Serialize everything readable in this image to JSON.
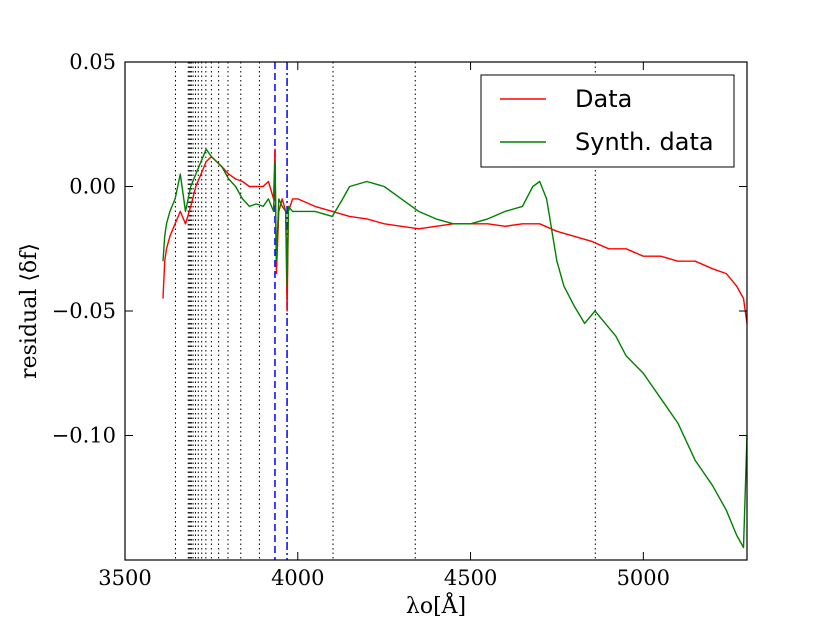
{
  "chart_data": {
    "type": "line",
    "title": "",
    "xlabel": "λo[Å]",
    "ylabel": "residual ⟨δf⟩",
    "xlim": [
      3500,
      5300
    ],
    "ylim": [
      -0.15,
      0.05
    ],
    "xticks": [
      3500,
      4000,
      4500,
      5000
    ],
    "xtick_labels": [
      "3500",
      "4000",
      "4500",
      "5000"
    ],
    "yticks": [
      0.05,
      0.0,
      -0.05,
      -0.1
    ],
    "ytick_labels": [
      "0.05",
      "0.00",
      "−0.05",
      "−0.10"
    ],
    "grid": false,
    "legend_position": "top-right",
    "series": [
      {
        "name": "Data",
        "color": "#ff0000",
        "x": [
          3610,
          3615,
          3620,
          3630,
          3645,
          3660,
          3675,
          3690,
          3705,
          3720,
          3735,
          3750,
          3765,
          3780,
          3800,
          3820,
          3840,
          3860,
          3880,
          3900,
          3915,
          3930,
          3934,
          3938,
          3945,
          3955,
          3965,
          3969,
          3973,
          3985,
          4000,
          4050,
          4100,
          4150,
          4200,
          4250,
          4300,
          4350,
          4400,
          4450,
          4500,
          4550,
          4600,
          4650,
          4700,
          4750,
          4800,
          4850,
          4900,
          4950,
          5000,
          5050,
          5100,
          5150,
          5200,
          5240,
          5270,
          5290,
          5300
        ],
        "y": [
          -0.045,
          -0.03,
          -0.025,
          -0.02,
          -0.015,
          -0.01,
          -0.015,
          -0.008,
          0.0,
          0.005,
          0.01,
          0.012,
          0.01,
          0.008,
          0.005,
          0.003,
          0.002,
          0.0,
          0.0,
          0.0,
          0.002,
          -0.005,
          0.015,
          -0.035,
          -0.01,
          -0.005,
          -0.01,
          -0.05,
          -0.01,
          -0.005,
          -0.005,
          -0.008,
          -0.01,
          -0.012,
          -0.013,
          -0.015,
          -0.016,
          -0.017,
          -0.016,
          -0.015,
          -0.015,
          -0.015,
          -0.016,
          -0.015,
          -0.015,
          -0.018,
          -0.02,
          -0.022,
          -0.025,
          -0.025,
          -0.028,
          -0.028,
          -0.03,
          -0.03,
          -0.033,
          -0.035,
          -0.04,
          -0.045,
          -0.055
        ]
      },
      {
        "name": "Synth. data",
        "color": "#008000",
        "x": [
          3610,
          3615,
          3620,
          3630,
          3645,
          3660,
          3675,
          3690,
          3705,
          3720,
          3735,
          3750,
          3765,
          3780,
          3800,
          3820,
          3840,
          3860,
          3880,
          3900,
          3915,
          3930,
          3934,
          3938,
          3945,
          3955,
          3965,
          3969,
          3973,
          3985,
          4000,
          4050,
          4100,
          4130,
          4150,
          4200,
          4250,
          4300,
          4350,
          4400,
          4450,
          4500,
          4550,
          4600,
          4650,
          4680,
          4700,
          4720,
          4750,
          4770,
          4800,
          4830,
          4860,
          4890,
          4920,
          4950,
          5000,
          5050,
          5100,
          5150,
          5200,
          5240,
          5270,
          5290,
          5300
        ],
        "y": [
          -0.03,
          -0.02,
          -0.015,
          -0.01,
          -0.005,
          0.005,
          -0.01,
          0.0,
          0.005,
          0.01,
          0.015,
          0.012,
          0.01,
          0.008,
          0.003,
          0.0,
          -0.005,
          -0.008,
          -0.007,
          -0.008,
          -0.005,
          -0.01,
          0.01,
          -0.03,
          -0.005,
          -0.008,
          -0.01,
          -0.04,
          -0.008,
          -0.01,
          -0.01,
          -0.01,
          -0.012,
          -0.005,
          0.0,
          0.002,
          0.0,
          -0.005,
          -0.01,
          -0.013,
          -0.015,
          -0.015,
          -0.013,
          -0.01,
          -0.008,
          0.0,
          0.002,
          -0.005,
          -0.03,
          -0.04,
          -0.048,
          -0.055,
          -0.05,
          -0.055,
          -0.06,
          -0.068,
          -0.075,
          -0.085,
          -0.095,
          -0.11,
          -0.12,
          -0.13,
          -0.14,
          -0.145,
          -0.1
        ]
      }
    ],
    "vertical_lines": [
      {
        "style": "dotted",
        "color": "#000000",
        "x": [
          3646,
          3683,
          3686,
          3689,
          3692,
          3697,
          3704,
          3712,
          3722,
          3734,
          3750,
          3771,
          3798,
          3835,
          3889,
          4102,
          4340,
          4861
        ]
      },
      {
        "style": "dashed",
        "color": "#0000ff",
        "x": [
          3934
        ]
      },
      {
        "style": "dashdot",
        "color": "#0000ff",
        "x": [
          3969
        ]
      }
    ]
  }
}
